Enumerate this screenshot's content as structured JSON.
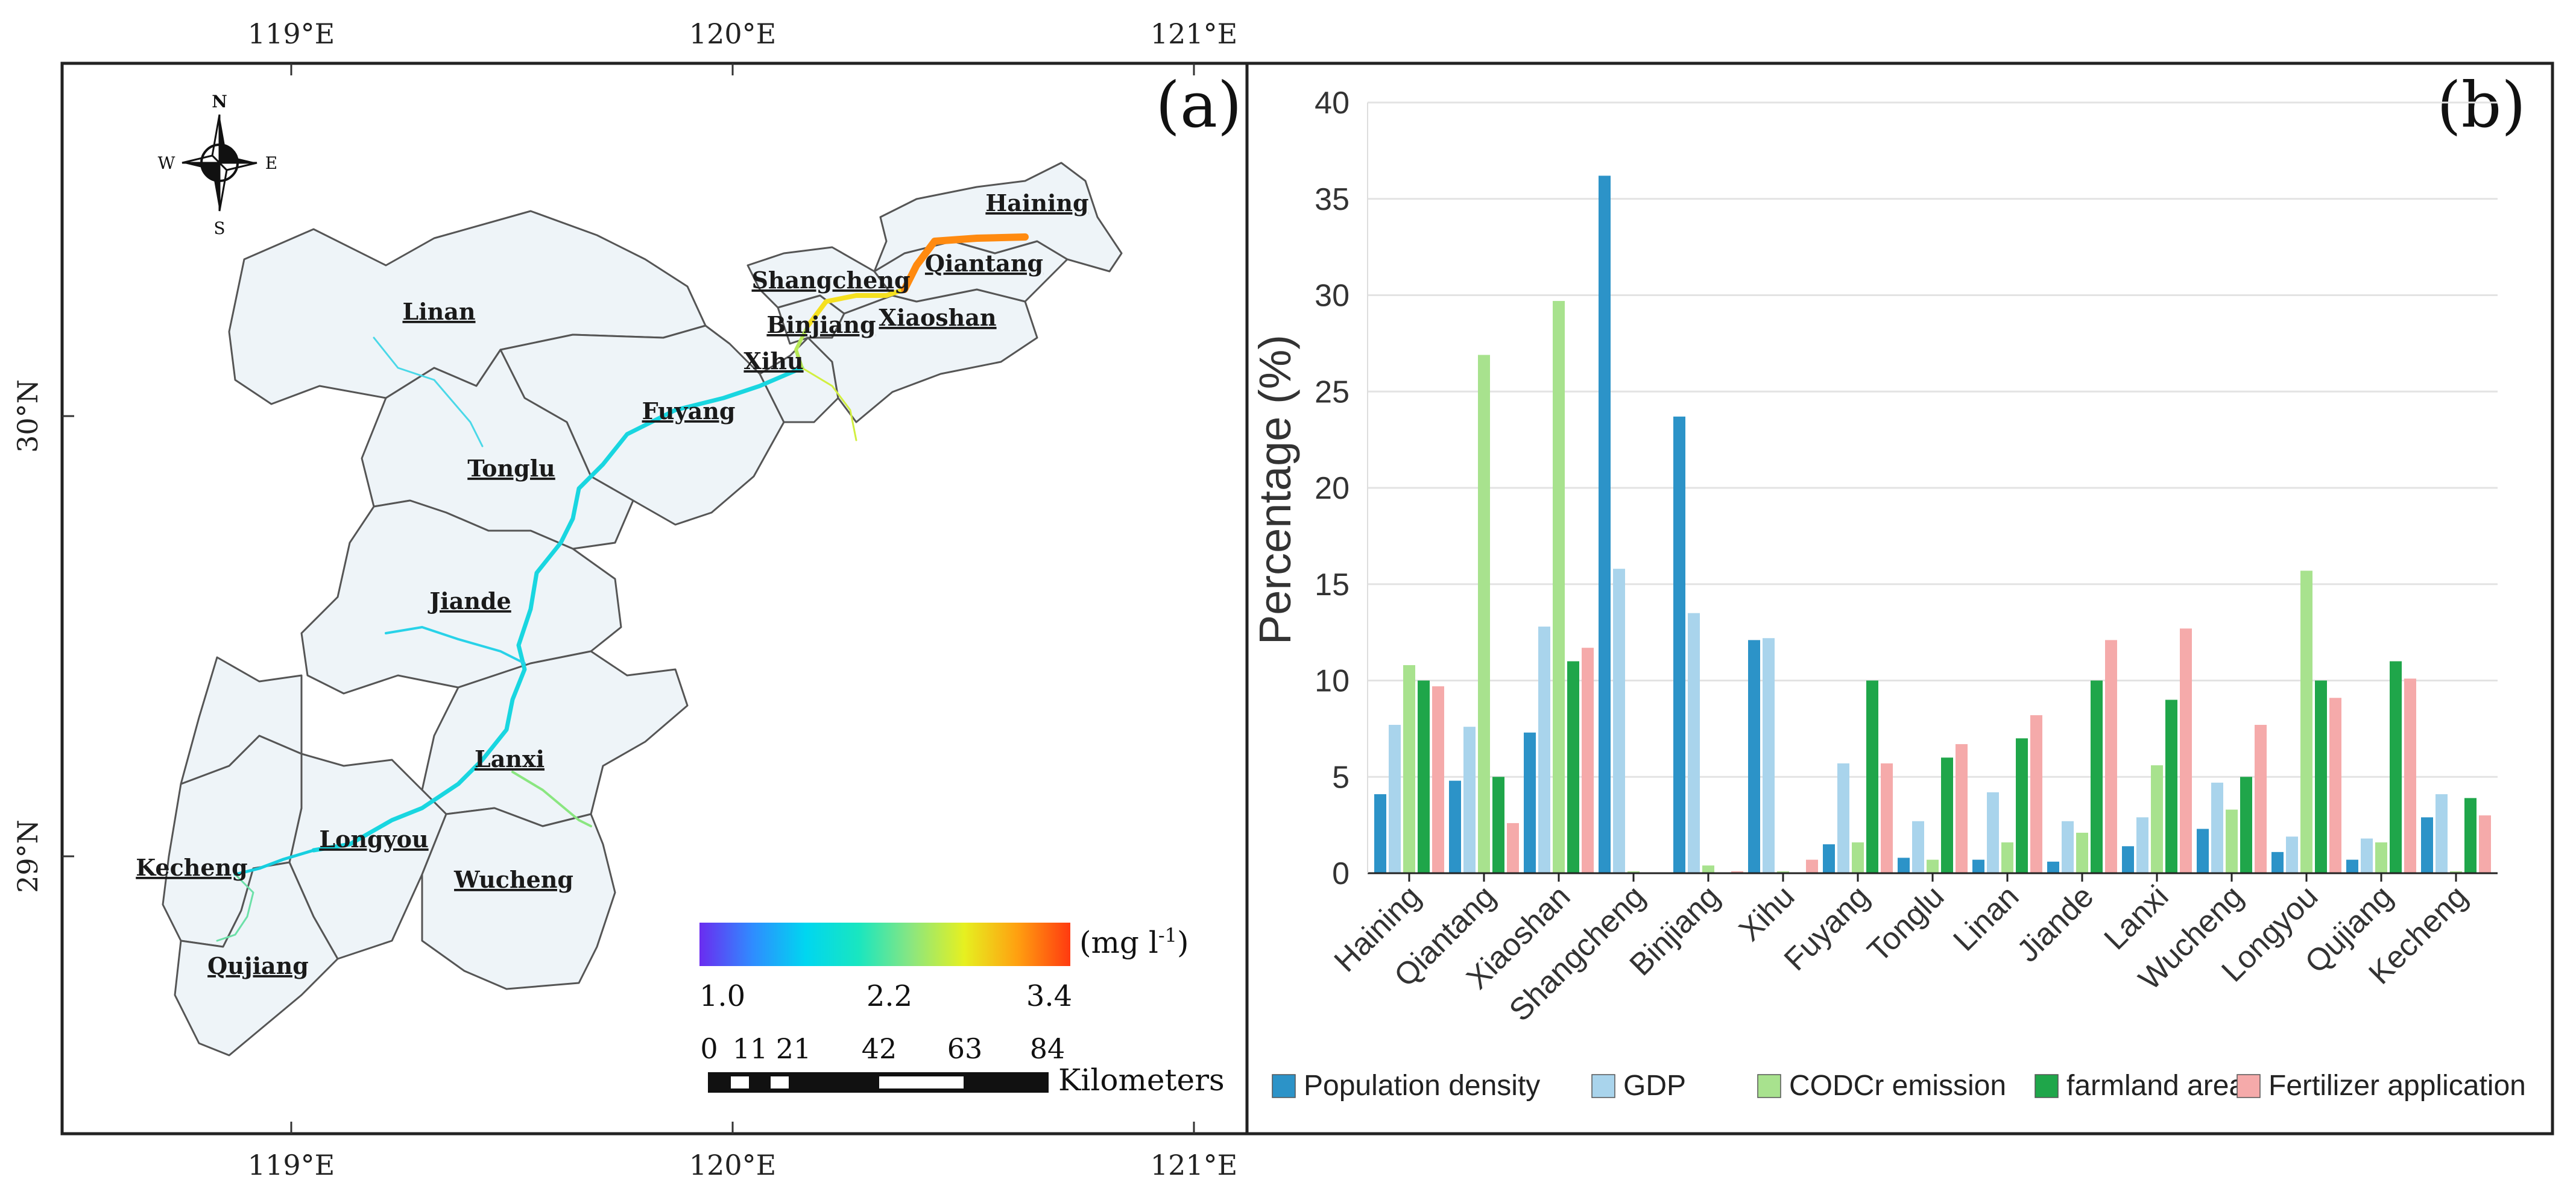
{
  "panel_a": {
    "label": "(a)",
    "top_ticks": [
      "119°E",
      "120°E",
      "121°E"
    ],
    "bottom_ticks": [
      "119°E",
      "120°E",
      "121°E"
    ],
    "left_ticks": [
      "30°N",
      "29°N"
    ],
    "compass": {
      "n": "N",
      "s": "S",
      "e": "E",
      "w": "W"
    },
    "districts": [
      "Haining",
      "Qiantang",
      "Shangcheng",
      "Xiaoshan",
      "Binjiang",
      "Xihu",
      "Linan",
      "Fuyang",
      "Tonglu",
      "Jiande",
      "Lanxi",
      "Longyou",
      "Wucheng",
      "Kecheng",
      "Qujiang"
    ],
    "legend": {
      "unit": "(mg l",
      "unit_sup": "-1",
      "unit_close": ")",
      "ticks": [
        "1.0",
        "2.2",
        "3.4"
      ],
      "min": 1.0,
      "max": 3.4,
      "colors": [
        "#6a2cf0",
        "#2f8cff",
        "#00d6f0",
        "#19e6c0",
        "#8ae680",
        "#e6f020",
        "#ffa010",
        "#ff3a10"
      ]
    },
    "scalebar": {
      "ticks": [
        "0",
        "11",
        "21",
        "42",
        "63",
        "84"
      ],
      "unit": "Kilometers"
    }
  },
  "chart_data": {
    "type": "bar",
    "label": "(b)",
    "title": "",
    "xlabel": "",
    "ylabel": "Percentage (%)",
    "ylim": [
      0,
      40
    ],
    "yticks": [
      0,
      5,
      10,
      15,
      20,
      25,
      30,
      35,
      40
    ],
    "grid": true,
    "legend_position": "bottom",
    "categories": [
      "Haining",
      "Qiantang",
      "Xiaoshan",
      "Shangcheng",
      "Binjiang",
      "Xihu",
      "Fuyang",
      "Tonglu",
      "Linan",
      "Jiande",
      "Lanxi",
      "Wucheng",
      "Longyou",
      "Qujiang",
      "Kecheng"
    ],
    "series": [
      {
        "name": "Population density",
        "color": "#2c93c8",
        "values": [
          4.1,
          4.8,
          7.3,
          36.2,
          23.7,
          12.1,
          1.5,
          0.8,
          0.7,
          0.6,
          1.4,
          2.3,
          1.1,
          0.7,
          2.9
        ]
      },
      {
        "name": "GDP",
        "color": "#a9d4ec",
        "values": [
          7.7,
          7.6,
          12.8,
          15.8,
          13.5,
          12.2,
          5.7,
          2.7,
          4.2,
          2.7,
          2.9,
          4.7,
          1.9,
          1.8,
          4.1
        ]
      },
      {
        "name": "CODCr emission",
        "color": "#a8e28e",
        "values": [
          10.8,
          26.9,
          29.7,
          0.1,
          0.4,
          0.1,
          1.6,
          0.7,
          1.6,
          2.1,
          5.6,
          3.3,
          15.7,
          1.6,
          0.1
        ]
      },
      {
        "name": "farmland area",
        "color": "#1fa64a",
        "values": [
          10.0,
          5.0,
          11.0,
          0.0,
          0.0,
          0.0,
          10.0,
          6.0,
          7.0,
          10.0,
          9.0,
          5.0,
          10.0,
          11.0,
          3.9
        ]
      },
      {
        "name": "Fertilizer application",
        "color": "#f5aaaa",
        "values": [
          9.7,
          2.6,
          11.7,
          0.0,
          0.1,
          0.7,
          5.7,
          6.7,
          8.2,
          12.1,
          12.7,
          7.7,
          9.1,
          10.1,
          3.0
        ]
      }
    ]
  }
}
